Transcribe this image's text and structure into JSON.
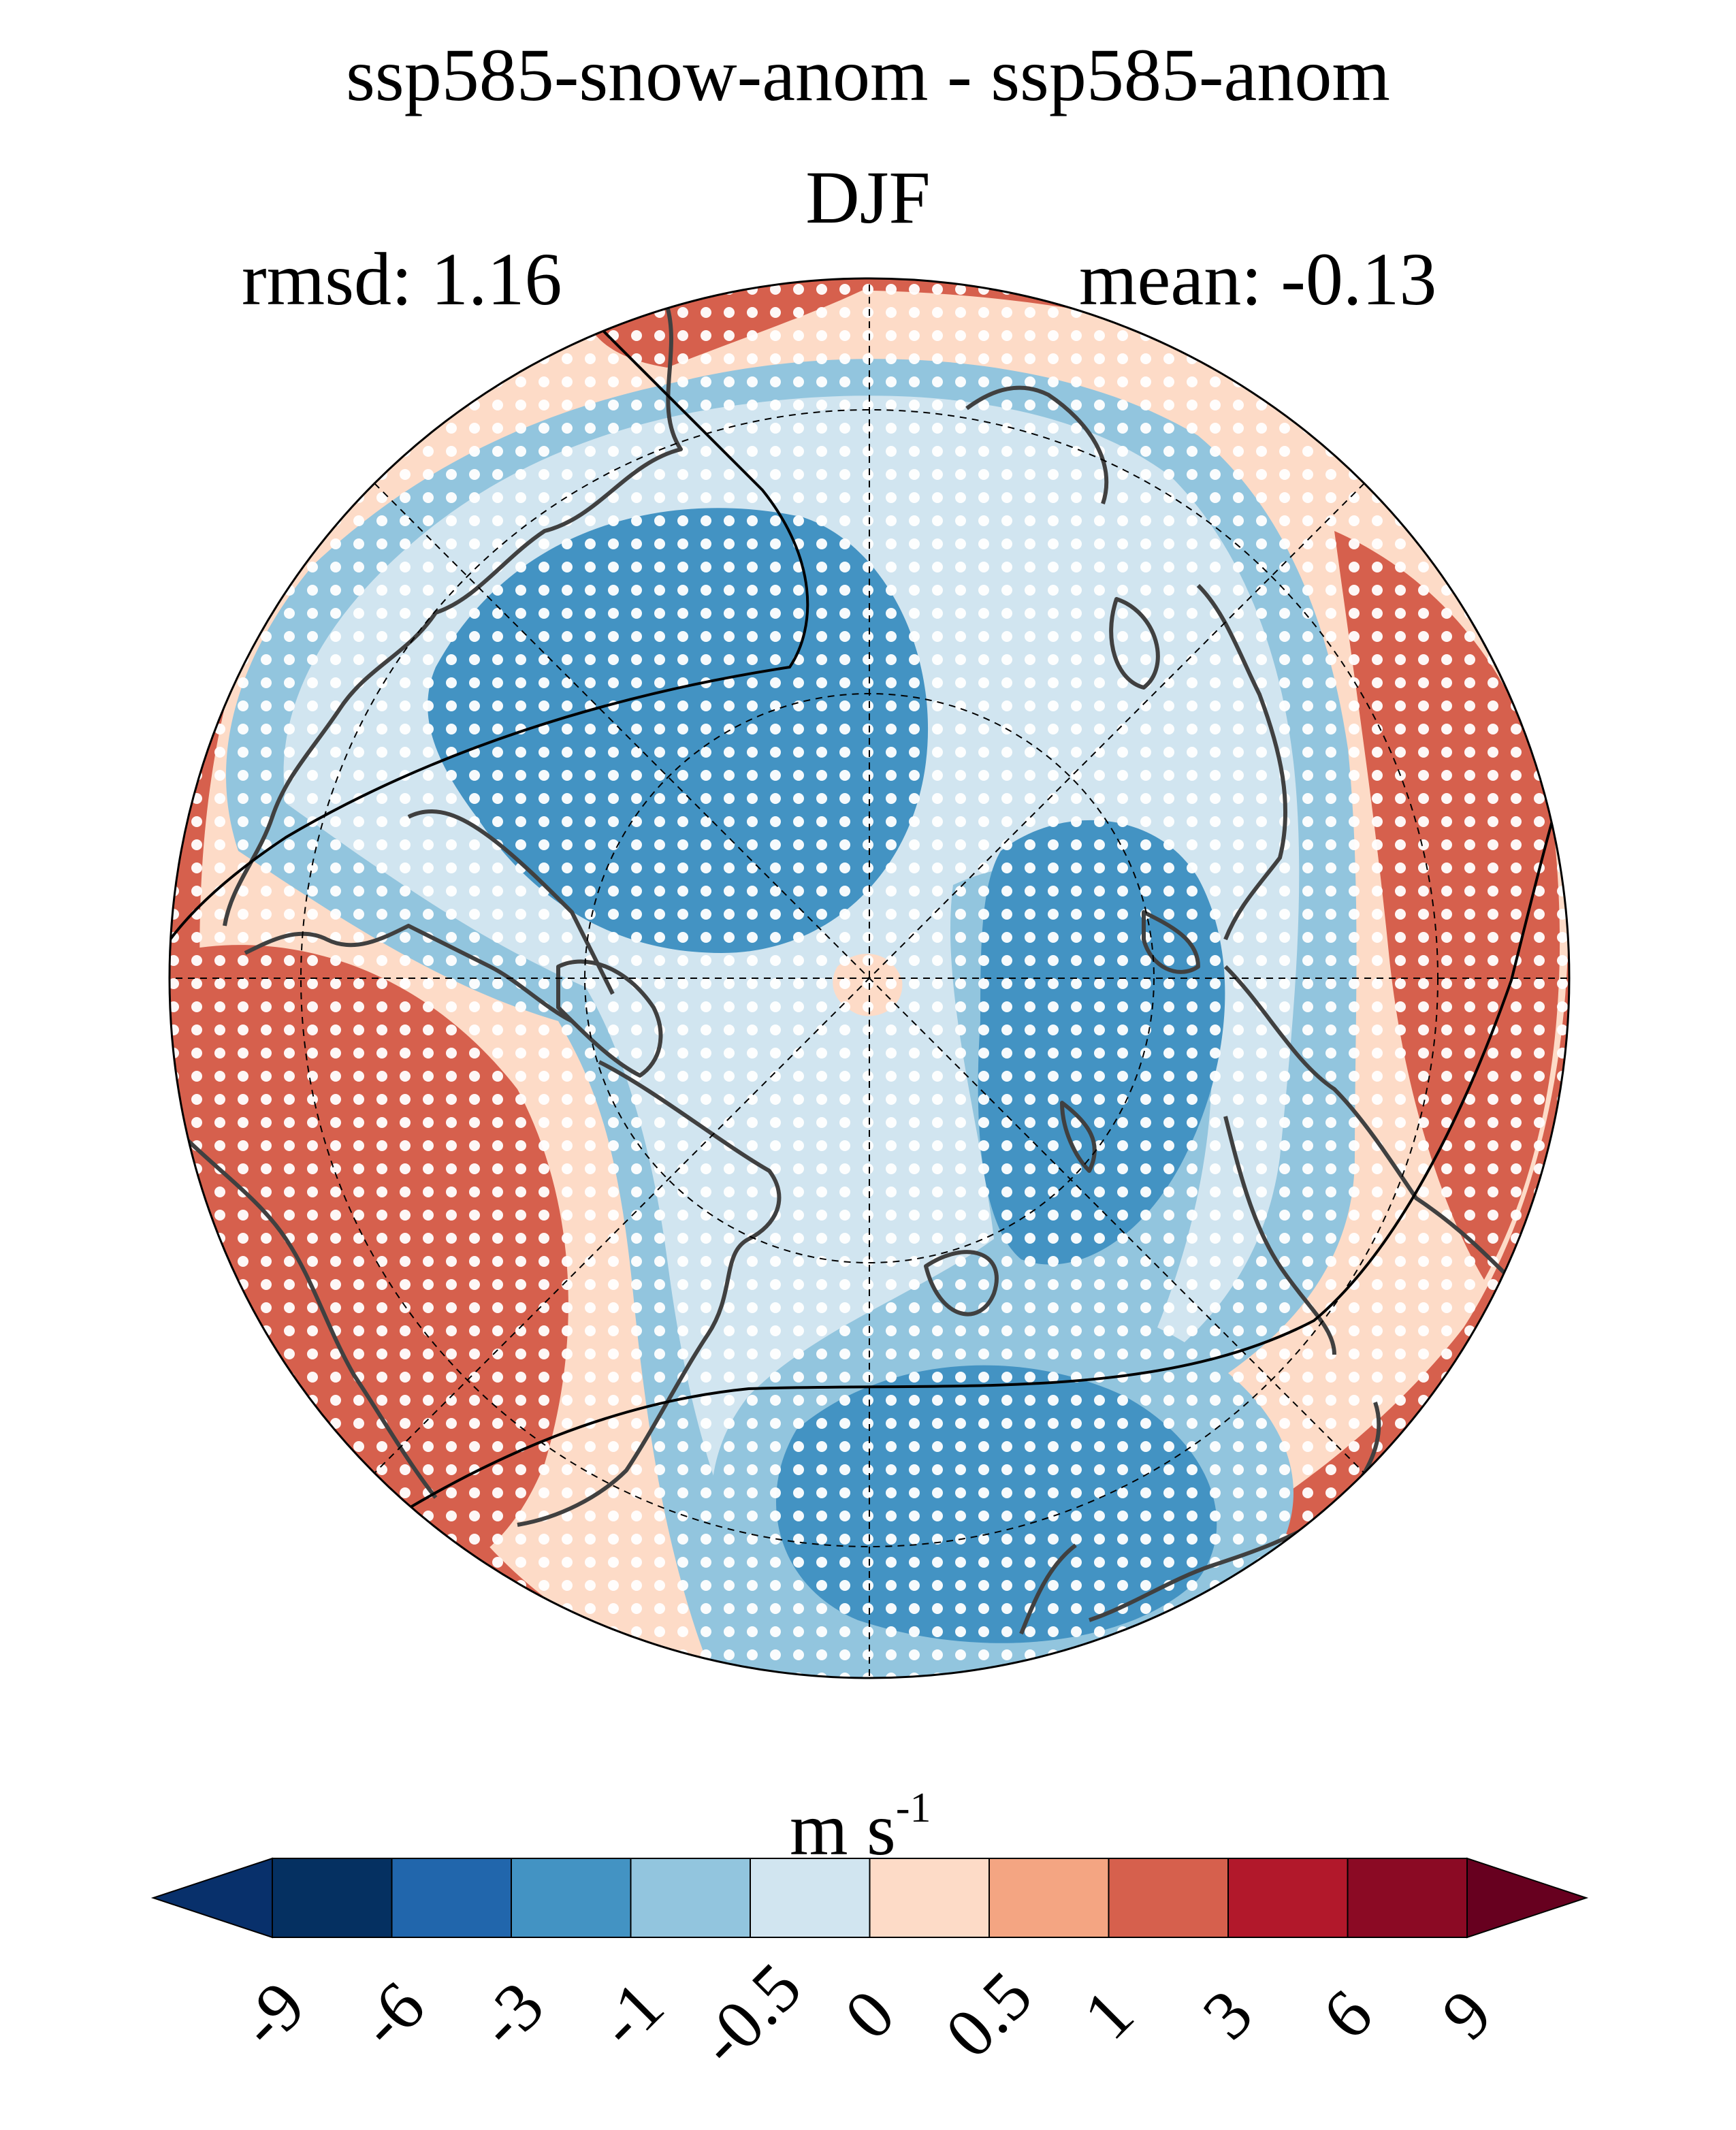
{
  "title": "ssp585-snow-anom - ssp585-anom",
  "season": "DJF",
  "rmsd_label": "rmsd: 1.16",
  "mean_label": "mean: -0.13",
  "colorbar": {
    "unit_base": "m s",
    "unit_exp": "-1",
    "ticks": [
      "-9",
      "-6",
      "-3",
      "-1",
      "-0.5",
      "0",
      "0.5",
      "1",
      "3",
      "6",
      "9"
    ],
    "colors": [
      "#08306b",
      "#053061",
      "#2166ac",
      "#4393c3",
      "#92c5de",
      "#d1e5f0",
      "#fddbc7",
      "#f4a582",
      "#d6604d",
      "#b2182b",
      "#8b0a24",
      "#67001f"
    ]
  },
  "map_colors": {
    "strong_neg": "#4393c3",
    "neg": "#92c5de",
    "weak_neg": "#d1e5f0",
    "weak_pos": "#fddbc7",
    "pos": "#f4a582",
    "strong_pos": "#d6604d",
    "coast": "#404040"
  }
}
